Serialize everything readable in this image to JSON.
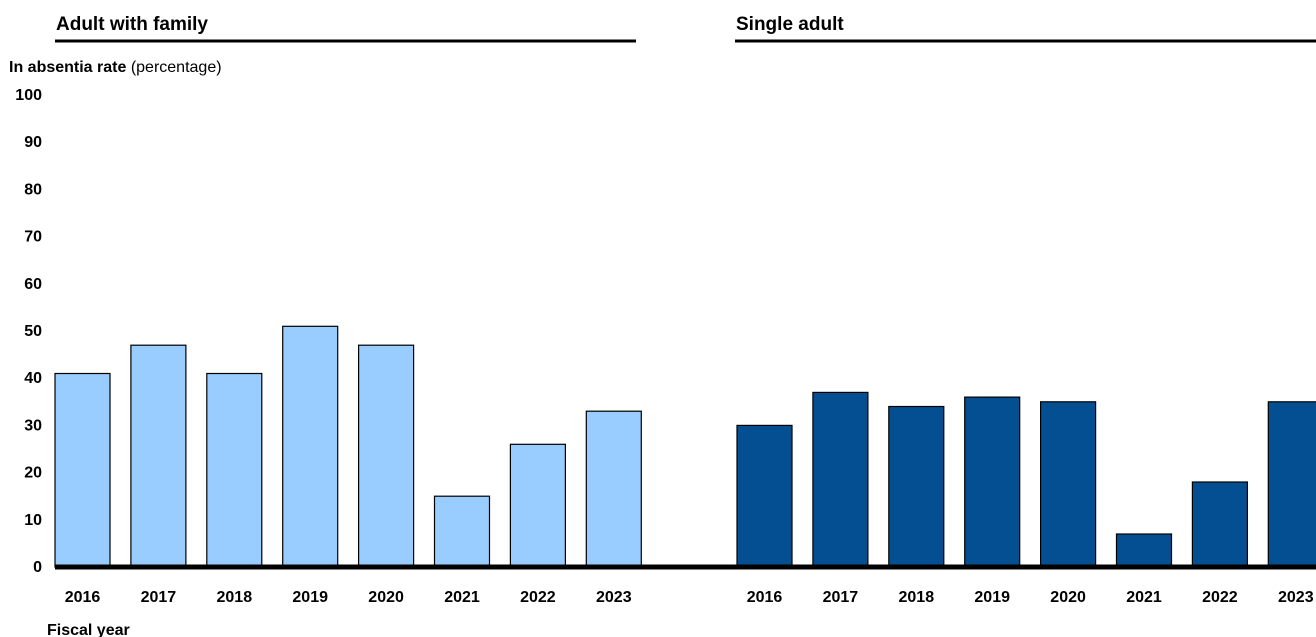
{
  "chart_data": {
    "type": "bar",
    "ylabel_bold": "In absentia rate",
    "ylabel_normal": " (percentage)",
    "xlabel": "Fiscal year",
    "ylim": [
      0,
      100
    ],
    "yticks": [
      0,
      10,
      20,
      30,
      40,
      50,
      60,
      70,
      80,
      90,
      100
    ],
    "grid": false,
    "panels": [
      {
        "title": "Adult with family",
        "color": "#99ccff",
        "categories": [
          "2016",
          "2017",
          "2018",
          "2019",
          "2020",
          "2021",
          "2022",
          "2023"
        ],
        "values": [
          41,
          47,
          41,
          51,
          47,
          15,
          26,
          33
        ]
      },
      {
        "title": "Single adult",
        "color": "#034f92",
        "categories": [
          "2016",
          "2017",
          "2018",
          "2019",
          "2020",
          "2021",
          "2022",
          "2023"
        ],
        "values": [
          30,
          37,
          34,
          36,
          35,
          7,
          18,
          35
        ]
      }
    ]
  }
}
